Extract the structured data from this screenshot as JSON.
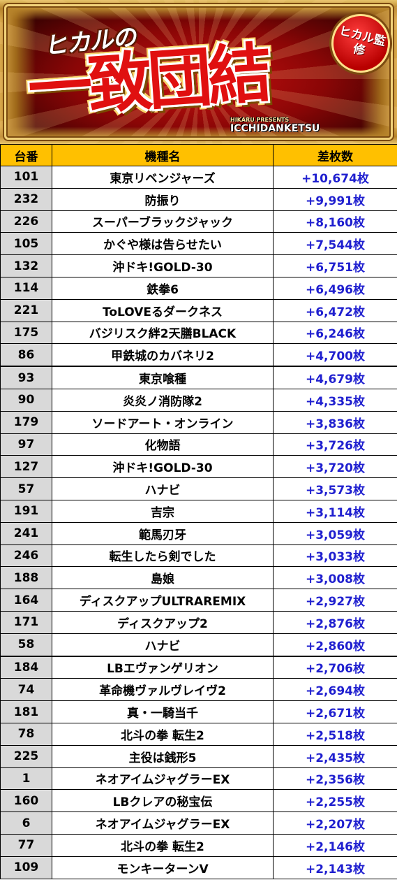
{
  "banner": {
    "sub_title": "ヒカルの",
    "main_title": "一致団結",
    "badge": "ヒカル監修",
    "logo": "ICCHIDANKETSU",
    "logo_small": "HIKARU PRESENTS"
  },
  "table": {
    "headers": {
      "no": "台番",
      "name": "機種名",
      "diff": "差枚数"
    },
    "rows": [
      {
        "no": "101",
        "name": "東京リベンジャーズ",
        "diff": "+10,674枚"
      },
      {
        "no": "232",
        "name": "防振り",
        "diff": "+9,991枚"
      },
      {
        "no": "226",
        "name": "スーパーブラックジャック",
        "diff": "+8,160枚"
      },
      {
        "no": "105",
        "name": "かぐや様は告らせたい",
        "diff": "+7,544枚"
      },
      {
        "no": "132",
        "name": "沖ドキ!GOLD-30",
        "diff": "+6,751枚"
      },
      {
        "no": "114",
        "name": "鉄拳6",
        "diff": "+6,496枚"
      },
      {
        "no": "221",
        "name": "ToLOVEるダークネス",
        "diff": "+6,472枚"
      },
      {
        "no": "175",
        "name": "バジリスク絆2天膳BLACK",
        "diff": "+6,246枚"
      },
      {
        "no": "86",
        "name": "甲鉄城のカバネリ2",
        "diff": "+4,700枚"
      },
      {
        "no": "93",
        "name": "東京喰種",
        "diff": "+4,679枚"
      },
      {
        "no": "90",
        "name": "炎炎ノ消防隊2",
        "diff": "+4,335枚"
      },
      {
        "no": "179",
        "name": "ソードアート・オンライン",
        "diff": "+3,836枚"
      },
      {
        "no": "97",
        "name": "化物語",
        "diff": "+3,726枚"
      },
      {
        "no": "127",
        "name": "沖ドキ!GOLD-30",
        "diff": "+3,720枚"
      },
      {
        "no": "57",
        "name": "ハナビ",
        "diff": "+3,573枚"
      },
      {
        "no": "191",
        "name": "吉宗",
        "diff": "+3,114枚"
      },
      {
        "no": "241",
        "name": "範馬刃牙",
        "diff": "+3,059枚"
      },
      {
        "no": "246",
        "name": "転生したら剣でした",
        "diff": "+3,033枚"
      },
      {
        "no": "188",
        "name": "島娘",
        "diff": "+3,008枚"
      },
      {
        "no": "164",
        "name": "ディスクアップULTRAREMIX",
        "diff": "+2,927枚"
      },
      {
        "no": "171",
        "name": "ディスクアップ2",
        "diff": "+2,876枚"
      },
      {
        "no": "58",
        "name": "ハナビ",
        "diff": "+2,860枚"
      },
      {
        "no": "184",
        "name": "LBエヴァンゲリオン",
        "diff": "+2,706枚"
      },
      {
        "no": "74",
        "name": "革命機ヴァルヴレイヴ2",
        "diff": "+2,694枚"
      },
      {
        "no": "181",
        "name": "真・一騎当千",
        "diff": "+2,671枚"
      },
      {
        "no": "78",
        "name": "北斗の拳 転生2",
        "diff": "+2,518枚"
      },
      {
        "no": "225",
        "name": "主役は銭形5",
        "diff": "+2,435枚"
      },
      {
        "no": "1",
        "name": "ネオアイムジャグラーEX",
        "diff": "+2,356枚"
      },
      {
        "no": "160",
        "name": "LBクレアの秘宝伝",
        "diff": "+2,255枚"
      },
      {
        "no": "6",
        "name": "ネオアイムジャグラーEX",
        "diff": "+2,207枚"
      },
      {
        "no": "77",
        "name": "北斗の拳 転生2",
        "diff": "+2,146枚"
      },
      {
        "no": "109",
        "name": "モンキーターンV",
        "diff": "+2,143枚"
      }
    ]
  }
}
